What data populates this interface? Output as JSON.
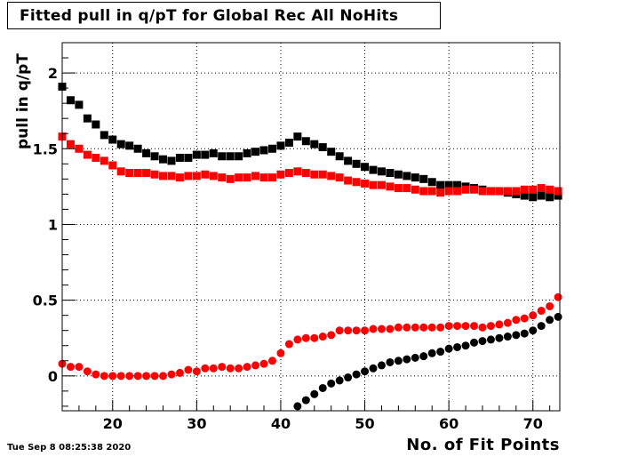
{
  "chart_data": {
    "type": "scatter",
    "title": "Fitted pull in q/pT for Global Rec All NoHits",
    "xlabel": "No. of Fit Points",
    "ylabel": "pull in q/pT",
    "xlim": [
      14,
      73.2
    ],
    "ylim": [
      -0.23,
      2.2
    ],
    "xticks": [
      "20",
      "30",
      "40",
      "50",
      "60",
      "70"
    ],
    "xtick_values": [
      20,
      30,
      40,
      50,
      60,
      70
    ],
    "yticks": [
      "0",
      "0.5",
      "1",
      "1.5",
      "2"
    ],
    "ytick_values": [
      0,
      0.5,
      1,
      1.5,
      2
    ],
    "grid": true,
    "series": [
      {
        "marker": "square",
        "color": "#000000",
        "x": [
          14,
          15,
          16,
          17,
          18,
          19,
          20,
          21,
          22,
          23,
          24,
          25,
          26,
          27,
          28,
          29,
          30,
          31,
          32,
          33,
          34,
          35,
          36,
          37,
          38,
          39,
          40,
          41,
          42,
          43,
          44,
          45,
          46,
          47,
          48,
          49,
          50,
          51,
          52,
          53,
          54,
          55,
          56,
          57,
          58,
          59,
          60,
          61,
          62,
          63,
          64,
          65,
          66,
          67,
          68,
          69,
          70,
          71,
          72,
          73
        ],
        "values": [
          1.91,
          1.82,
          1.79,
          1.7,
          1.66,
          1.59,
          1.56,
          1.53,
          1.52,
          1.5,
          1.47,
          1.45,
          1.43,
          1.42,
          1.44,
          1.44,
          1.46,
          1.46,
          1.47,
          1.45,
          1.45,
          1.45,
          1.47,
          1.48,
          1.49,
          1.5,
          1.52,
          1.54,
          1.58,
          1.55,
          1.53,
          1.51,
          1.48,
          1.45,
          1.42,
          1.4,
          1.38,
          1.36,
          1.35,
          1.34,
          1.33,
          1.32,
          1.31,
          1.3,
          1.28,
          1.26,
          1.26,
          1.26,
          1.25,
          1.24,
          1.23,
          1.22,
          1.22,
          1.21,
          1.2,
          1.19,
          1.18,
          1.19,
          1.18,
          1.19
        ]
      },
      {
        "marker": "square",
        "color": "#ff0000",
        "x": [
          14,
          15,
          16,
          17,
          18,
          19,
          20,
          21,
          22,
          23,
          24,
          25,
          26,
          27,
          28,
          29,
          30,
          31,
          32,
          33,
          34,
          35,
          36,
          37,
          38,
          39,
          40,
          41,
          42,
          43,
          44,
          45,
          46,
          47,
          48,
          49,
          50,
          51,
          52,
          53,
          54,
          55,
          56,
          57,
          58,
          59,
          60,
          61,
          62,
          63,
          64,
          65,
          66,
          67,
          68,
          69,
          70,
          71,
          72,
          73
        ],
        "values": [
          1.58,
          1.53,
          1.5,
          1.46,
          1.44,
          1.42,
          1.39,
          1.35,
          1.34,
          1.34,
          1.34,
          1.33,
          1.32,
          1.32,
          1.31,
          1.32,
          1.32,
          1.33,
          1.32,
          1.31,
          1.3,
          1.31,
          1.31,
          1.32,
          1.31,
          1.31,
          1.33,
          1.34,
          1.35,
          1.34,
          1.33,
          1.33,
          1.32,
          1.31,
          1.29,
          1.28,
          1.27,
          1.26,
          1.26,
          1.25,
          1.24,
          1.24,
          1.23,
          1.22,
          1.22,
          1.21,
          1.22,
          1.22,
          1.23,
          1.23,
          1.22,
          1.22,
          1.22,
          1.22,
          1.22,
          1.23,
          1.23,
          1.24,
          1.23,
          1.22
        ]
      },
      {
        "marker": "circle",
        "color": "#ff0000",
        "x": [
          14,
          15,
          16,
          17,
          18,
          19,
          20,
          21,
          22,
          23,
          24,
          25,
          26,
          27,
          28,
          29,
          30,
          31,
          32,
          33,
          34,
          35,
          36,
          37,
          38,
          39,
          40,
          41,
          42,
          43,
          44,
          45,
          46,
          47,
          48,
          49,
          50,
          51,
          52,
          53,
          54,
          55,
          56,
          57,
          58,
          59,
          60,
          61,
          62,
          63,
          64,
          65,
          66,
          67,
          68,
          69,
          70,
          71,
          72,
          73
        ],
        "values": [
          0.08,
          0.06,
          0.06,
          0.03,
          0.01,
          0.0,
          0.0,
          0.0,
          0.0,
          0.0,
          0.0,
          0.0,
          0.0,
          0.01,
          0.02,
          0.04,
          0.03,
          0.05,
          0.05,
          0.06,
          0.05,
          0.05,
          0.06,
          0.07,
          0.08,
          0.1,
          0.15,
          0.21,
          0.24,
          0.25,
          0.25,
          0.26,
          0.27,
          0.3,
          0.3,
          0.3,
          0.3,
          0.31,
          0.31,
          0.31,
          0.32,
          0.32,
          0.32,
          0.32,
          0.32,
          0.32,
          0.33,
          0.33,
          0.33,
          0.33,
          0.32,
          0.33,
          0.34,
          0.35,
          0.37,
          0.38,
          0.4,
          0.43,
          0.46,
          0.52
        ]
      },
      {
        "marker": "circle",
        "color": "#000000",
        "x": [
          42,
          43,
          44,
          45,
          46,
          47,
          48,
          49,
          50,
          51,
          52,
          53,
          54,
          55,
          56,
          57,
          58,
          59,
          60,
          61,
          62,
          63,
          64,
          65,
          66,
          67,
          68,
          69,
          70,
          71,
          72,
          73
        ],
        "values": [
          -0.2,
          -0.16,
          -0.12,
          -0.08,
          -0.05,
          -0.03,
          -0.01,
          0.01,
          0.03,
          0.05,
          0.07,
          0.09,
          0.1,
          0.11,
          0.12,
          0.13,
          0.15,
          0.16,
          0.18,
          0.19,
          0.2,
          0.22,
          0.23,
          0.24,
          0.25,
          0.26,
          0.27,
          0.28,
          0.3,
          0.33,
          0.37,
          0.39
        ]
      }
    ]
  },
  "footer": {
    "timestamp": "Tue Sep  8 08:25:38 2020"
  }
}
